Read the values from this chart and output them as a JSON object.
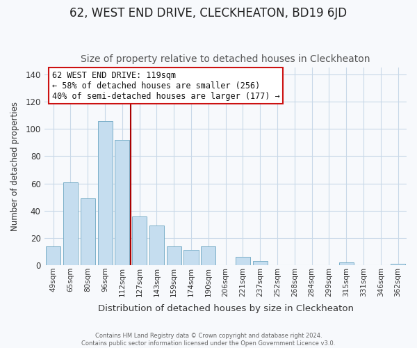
{
  "title": "62, WEST END DRIVE, CLECKHEATON, BD19 6JD",
  "subtitle": "Size of property relative to detached houses in Cleckheaton",
  "xlabel": "Distribution of detached houses by size in Cleckheaton",
  "ylabel": "Number of detached properties",
  "bar_labels": [
    "49sqm",
    "65sqm",
    "80sqm",
    "96sqm",
    "112sqm",
    "127sqm",
    "143sqm",
    "159sqm",
    "174sqm",
    "190sqm",
    "206sqm",
    "221sqm",
    "237sqm",
    "252sqm",
    "268sqm",
    "284sqm",
    "299sqm",
    "315sqm",
    "331sqm",
    "346sqm",
    "362sqm"
  ],
  "bar_values": [
    14,
    61,
    49,
    106,
    92,
    36,
    29,
    14,
    11,
    14,
    0,
    6,
    3,
    0,
    0,
    0,
    0,
    2,
    0,
    0,
    1
  ],
  "bar_color": "#c5ddef",
  "bar_edge_color": "#7aafc8",
  "vline_color": "#aa0000",
  "ylim": [
    0,
    145
  ],
  "yticks": [
    0,
    20,
    40,
    60,
    80,
    100,
    120,
    140
  ],
  "annotation_title": "62 WEST END DRIVE: 119sqm",
  "annotation_line1": "← 58% of detached houses are smaller (256)",
  "annotation_line2": "40% of semi-detached houses are larger (177) →",
  "footer_line1": "Contains HM Land Registry data © Crown copyright and database right 2024.",
  "footer_line2": "Contains public sector information licensed under the Open Government Licence v3.0.",
  "background_color": "#f7f9fc",
  "plot_bg_color": "#f7f9fc",
  "grid_color": "#c8d8e8",
  "title_fontsize": 12,
  "subtitle_fontsize": 10,
  "vline_pos": 4.5
}
